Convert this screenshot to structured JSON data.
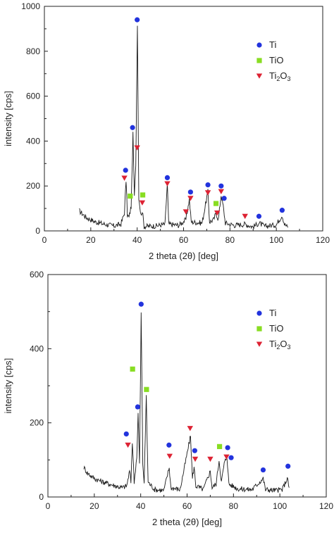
{
  "colors": {
    "ti": "#2233dd",
    "tio": "#88dd22",
    "ti2o3": "#dd2233",
    "line": "#1a1a1a"
  },
  "legend": {
    "ti": "Ti",
    "tio": "TiO",
    "ti2o3_main": "Ti",
    "ti2o3_sub1": "2",
    "ti2o3_mid": "O",
    "ti2o3_sub2": "3"
  },
  "chart_data": [
    {
      "type": "line",
      "xlabel": "2 theta (2θ) [deg]",
      "ylabel": "intensity [cps]",
      "xlim": [
        0,
        120
      ],
      "ylim": [
        0,
        1000
      ],
      "xticks": [
        "0",
        "20",
        "40",
        "60",
        "80",
        "100",
        "120"
      ],
      "yticks": [
        "0",
        "200",
        "400",
        "600",
        "800",
        "1000"
      ],
      "grid": false,
      "legend_position": "top-right",
      "series": [
        {
          "points": [
            [
              15,
              90
            ],
            [
              18,
              60
            ],
            [
              22,
              40
            ],
            [
              26,
              30
            ],
            [
              30,
              22
            ],
            [
              33,
              30
            ],
            [
              34.5,
              80
            ],
            [
              35.2,
              225
            ],
            [
              35.8,
              70
            ],
            [
              36.5,
              60
            ],
            [
              37.4,
              110
            ],
            [
              38.2,
              430
            ],
            [
              38.8,
              150
            ],
            [
              39.4,
              300
            ],
            [
              40.1,
              920
            ],
            [
              40.7,
              150
            ],
            [
              41.6,
              70
            ],
            [
              42.2,
              90
            ],
            [
              43,
              20
            ],
            [
              48,
              22
            ],
            [
              52,
              30
            ],
            [
              53,
              210
            ],
            [
              53.6,
              30
            ],
            [
              58,
              25
            ],
            [
              61,
              50
            ],
            [
              62.5,
              140
            ],
            [
              63.3,
              40
            ],
            [
              68,
              35
            ],
            [
              70.5,
              175
            ],
            [
              71.2,
              40
            ],
            [
              73,
              50
            ],
            [
              74,
              80
            ],
            [
              75,
              50
            ],
            [
              76.2,
              160
            ],
            [
              77.1,
              110
            ],
            [
              78,
              35
            ],
            [
              82,
              25
            ],
            [
              86.5,
              30
            ],
            [
              90,
              18
            ],
            [
              92.5,
              35
            ],
            [
              95,
              20
            ],
            [
              100,
              28
            ],
            [
              102.5,
              70
            ],
            [
              103.5,
              30
            ],
            [
              105,
              15
            ]
          ]
        }
      ],
      "markers": {
        "ti": [
          [
            35,
            270
          ],
          [
            38,
            460
          ],
          [
            40,
            940
          ],
          [
            53,
            237
          ],
          [
            63,
            173
          ],
          [
            70.5,
            205
          ],
          [
            76.2,
            200
          ],
          [
            77.5,
            145
          ],
          [
            92.5,
            65
          ],
          [
            102.5,
            92
          ]
        ],
        "tio": [
          [
            37,
            155
          ],
          [
            42.4,
            160
          ],
          [
            74,
            122
          ]
        ],
        "ti2o3": [
          [
            34.5,
            235
          ],
          [
            40,
            370
          ],
          [
            42.2,
            125
          ],
          [
            53,
            210
          ],
          [
            61,
            85
          ],
          [
            63,
            145
          ],
          [
            70.5,
            170
          ],
          [
            74.5,
            80
          ],
          [
            76.2,
            175
          ],
          [
            86.5,
            65
          ]
        ]
      }
    },
    {
      "type": "line",
      "xlabel": "2 theta (2θ) [deg]",
      "ylabel": "intensity [cps]",
      "xlim": [
        0,
        120
      ],
      "ylim": [
        0,
        600
      ],
      "xticks": [
        "0",
        "20",
        "40",
        "60",
        "80",
        "100",
        "120"
      ],
      "yticks": [
        "0",
        "200",
        "400",
        "600"
      ],
      "grid": false,
      "legend_position": "top-right",
      "series": [
        {
          "points": [
            [
              15.5,
              80
            ],
            [
              17,
              65
            ],
            [
              20,
              50
            ],
            [
              24,
              40
            ],
            [
              28,
              32
            ],
            [
              32,
              25
            ],
            [
              34,
              30
            ],
            [
              35.2,
              70
            ],
            [
              35.8,
              40
            ],
            [
              36.4,
              150
            ],
            [
              37.2,
              40
            ],
            [
              38.3,
              110
            ],
            [
              38.9,
              225
            ],
            [
              39.5,
              90
            ],
            [
              40.2,
              495
            ],
            [
              40.9,
              90
            ],
            [
              41.5,
              40
            ],
            [
              42.4,
              270
            ],
            [
              43.2,
              40
            ],
            [
              46,
              20
            ],
            [
              50,
              18
            ],
            [
              52.3,
              80
            ],
            [
              53,
              25
            ],
            [
              57,
              20
            ],
            [
              61.5,
              165
            ],
            [
              62.3,
              50
            ],
            [
              63,
              80
            ],
            [
              63.8,
              30
            ],
            [
              67,
              20
            ],
            [
              70,
              70
            ],
            [
              70.8,
              25
            ],
            [
              72.5,
              35
            ],
            [
              73.8,
              100
            ],
            [
              74.8,
              40
            ],
            [
              76,
              90
            ],
            [
              77.2,
              110
            ],
            [
              78,
              35
            ],
            [
              82,
              22
            ],
            [
              88,
              20
            ],
            [
              92.8,
              50
            ],
            [
              93.8,
              20
            ],
            [
              98,
              18
            ],
            [
              101,
              20
            ],
            [
              103.2,
              50
            ],
            [
              104,
              25
            ]
          ]
        }
      ],
      "markers": {
        "ti": [
          [
            33.8,
            170
          ],
          [
            38.7,
            243
          ],
          [
            40.2,
            520
          ],
          [
            52.2,
            140
          ],
          [
            63.3,
            125
          ],
          [
            77.5,
            133
          ],
          [
            79,
            106
          ],
          [
            92.8,
            73
          ],
          [
            103.5,
            83
          ]
        ],
        "tio": [
          [
            36.5,
            345
          ],
          [
            42.5,
            290
          ],
          [
            74,
            136
          ]
        ],
        "ti2o3": [
          [
            34.5,
            140
          ],
          [
            52.5,
            110
          ],
          [
            61.3,
            185
          ],
          [
            63.5,
            102
          ],
          [
            70,
            102
          ],
          [
            77,
            108
          ]
        ]
      }
    }
  ]
}
